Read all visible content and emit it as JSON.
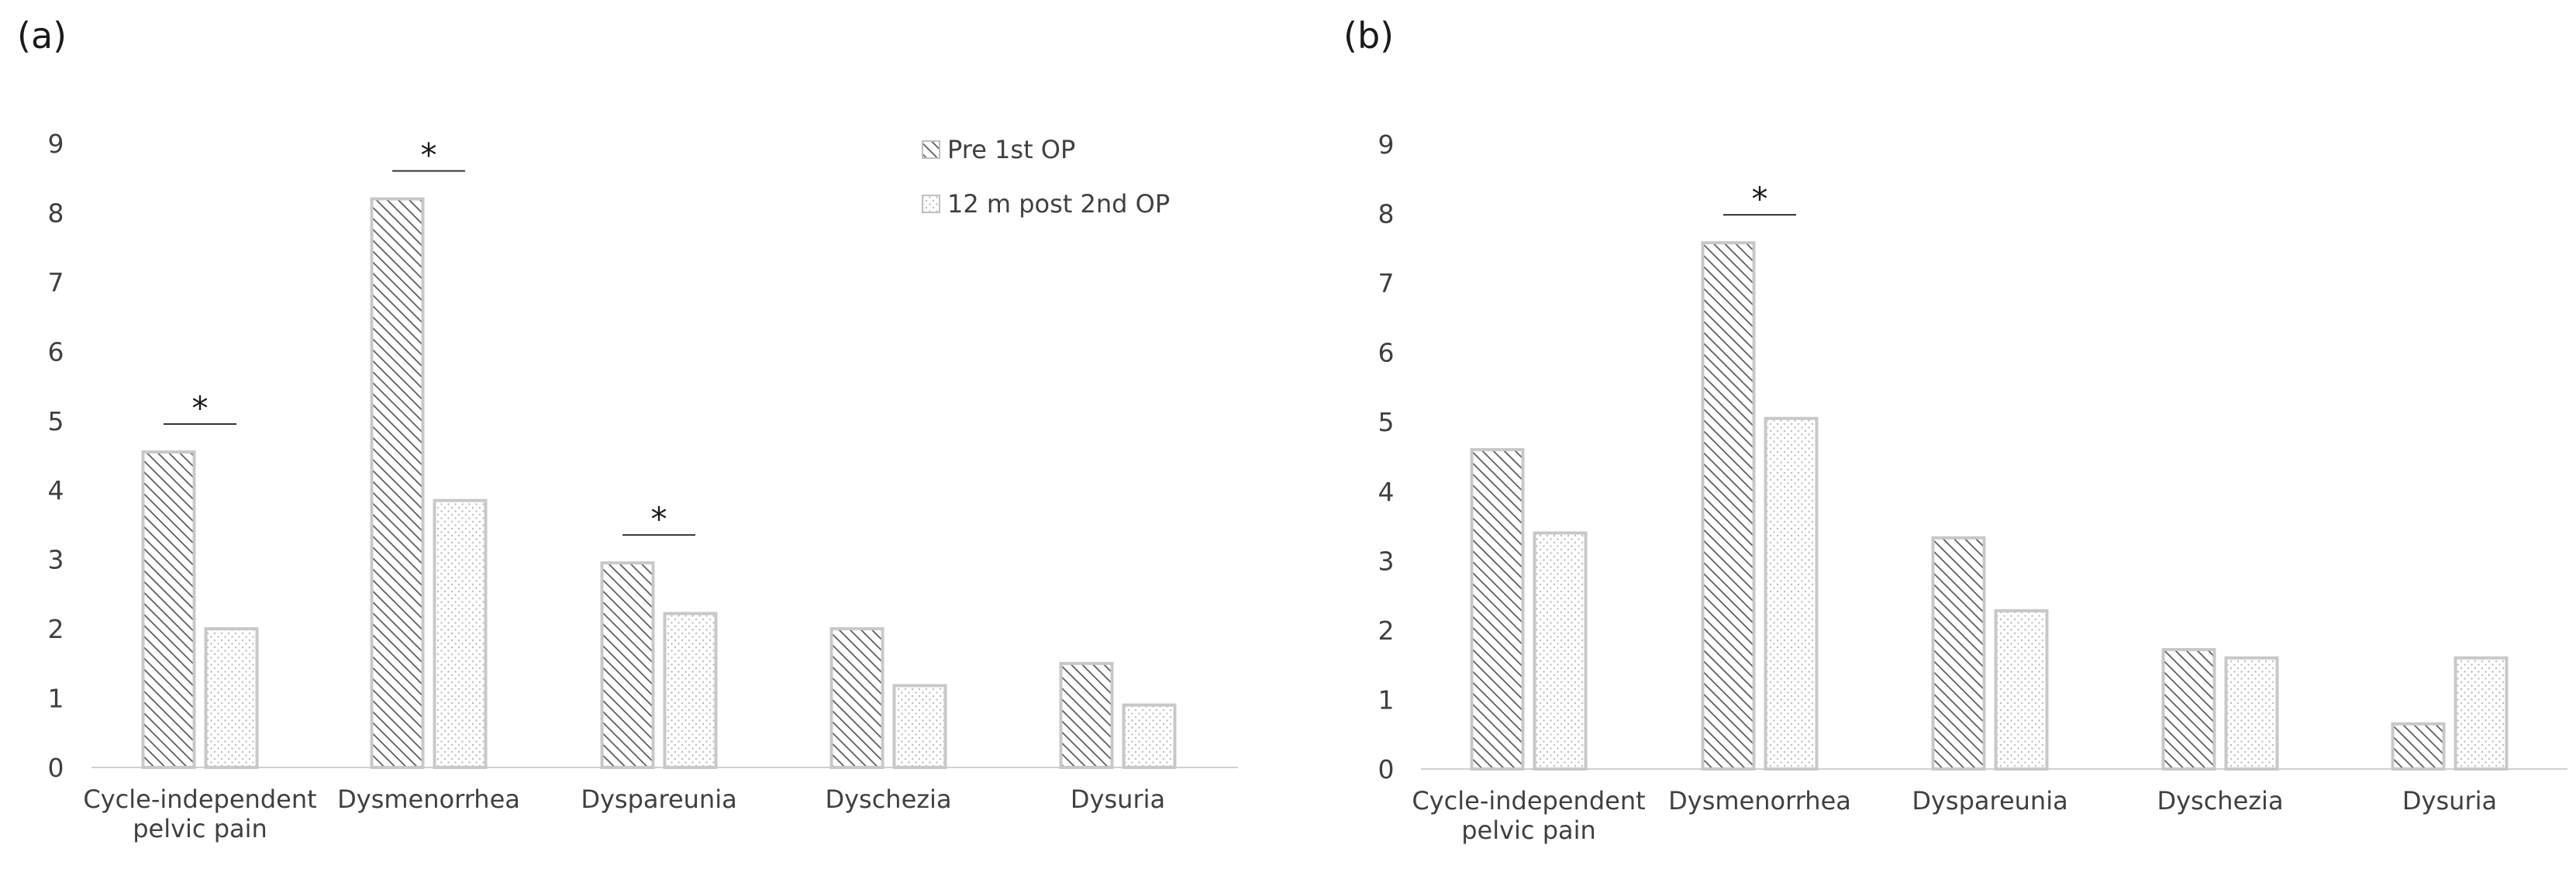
{
  "chart_data": [
    {
      "type": "bar",
      "panel_label": "(a)",
      "categories": [
        [
          "Cycle-independent",
          "pelvic pain"
        ],
        [
          "Dysmenorrhea"
        ],
        [
          "Dyspareunia"
        ],
        [
          "Dyschezia"
        ],
        [
          "Dysuria"
        ]
      ],
      "series": [
        {
          "name": "Pre 1st OP",
          "values": [
            4.55,
            8.2,
            2.95,
            2.0,
            1.5
          ]
        },
        {
          "name": "12 m post 2nd OP",
          "values": [
            2.0,
            3.85,
            2.22,
            1.18,
            0.9
          ]
        }
      ],
      "ylim": [
        0,
        9
      ],
      "yticks": [
        "0",
        "1",
        "2",
        "3",
        "4",
        "5",
        "6",
        "7",
        "8",
        "9"
      ],
      "significance": [
        {
          "category_index": 0,
          "label": "*"
        },
        {
          "category_index": 1,
          "label": "*"
        },
        {
          "category_index": 2,
          "label": "*"
        }
      ],
      "legend": {
        "position": "top-right",
        "entries": [
          "Pre 1st OP",
          "12 m post 2nd OP"
        ]
      },
      "title": "",
      "xlabel": "",
      "ylabel": "",
      "grid": false
    },
    {
      "type": "bar",
      "panel_label": "(b)",
      "categories": [
        [
          "Cycle-independent",
          "pelvic pain"
        ],
        [
          "Dysmenorrhea"
        ],
        [
          "Dyspareunia"
        ],
        [
          "Dyschezia"
        ],
        [
          "Dysuria"
        ]
      ],
      "series": [
        {
          "name": "Pre 1st OP",
          "values": [
            4.6,
            7.58,
            3.33,
            1.72,
            0.65
          ]
        },
        {
          "name": "12 m post 2nd OP",
          "values": [
            3.4,
            5.05,
            2.28,
            1.6,
            1.6
          ]
        }
      ],
      "ylim": [
        0,
        9
      ],
      "yticks": [
        "0",
        "1",
        "2",
        "3",
        "4",
        "5",
        "6",
        "7",
        "8",
        "9"
      ],
      "significance": [
        {
          "category_index": 1,
          "label": "*"
        }
      ],
      "title": "",
      "xlabel": "",
      "ylabel": "",
      "grid": false
    }
  ],
  "colors": {
    "bar_stroke": "#c8c8c8",
    "hatch": "#595959",
    "dots": "#c0c0c0",
    "axis": "#d0d0d0",
    "text": "#404040"
  }
}
